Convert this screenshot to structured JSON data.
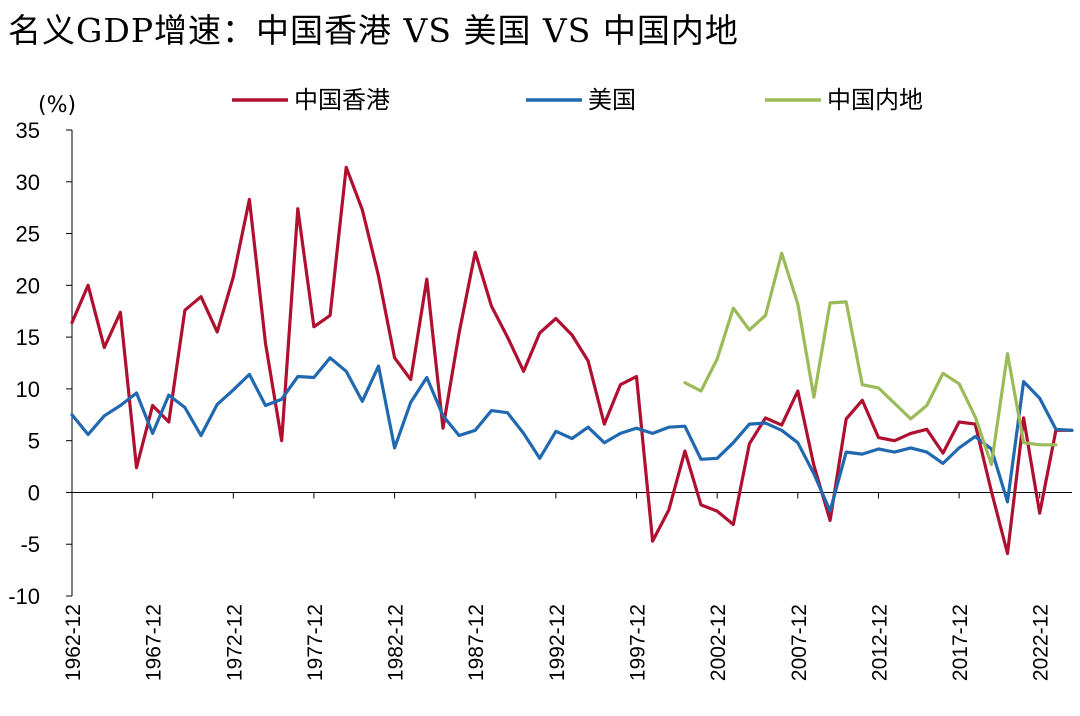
{
  "title": "名义GDP增速：中国香港 VS 美国 VS 中国内地",
  "chart_data": {
    "type": "line",
    "title": "名义GDP增速：中国香港 VS 美国 VS 中国内地",
    "unit_label": "(%)",
    "ylim": [
      -10,
      35
    ],
    "yticks": [
      35,
      30,
      25,
      20,
      15,
      10,
      5,
      0,
      -5,
      -10
    ],
    "xlim": [
      1962,
      2024
    ],
    "xticks": [
      "1962-12",
      "1967-12",
      "1972-12",
      "1977-12",
      "1982-12",
      "1987-12",
      "1992-12",
      "1997-12",
      "2002-12",
      "2007-12",
      "2012-12",
      "2017-12",
      "2022-12"
    ],
    "legend_position": "top",
    "x": [
      1962,
      1963,
      1964,
      1965,
      1966,
      1967,
      1968,
      1969,
      1970,
      1971,
      1972,
      1973,
      1974,
      1975,
      1976,
      1977,
      1978,
      1979,
      1980,
      1981,
      1982,
      1983,
      1984,
      1985,
      1986,
      1987,
      1988,
      1989,
      1990,
      1991,
      1992,
      1993,
      1994,
      1995,
      1996,
      1997,
      1998,
      1999,
      2000,
      2001,
      2002,
      2003,
      2004,
      2005,
      2006,
      2007,
      2008,
      2009,
      2010,
      2011,
      2012,
      2013,
      2014,
      2015,
      2016,
      2017,
      2018,
      2019,
      2020,
      2021,
      2022,
      2023,
      2024
    ],
    "series": [
      {
        "name": "中国香港",
        "color": "#b01030",
        "values": [
          16.4,
          20.0,
          14.0,
          17.4,
          2.4,
          8.4,
          6.8,
          17.6,
          18.9,
          15.5,
          20.8,
          28.3,
          14.4,
          5.0,
          27.4,
          16.0,
          17.1,
          31.4,
          27.3,
          20.9,
          13.0,
          10.9,
          20.6,
          6.2,
          15.4,
          23.2,
          18.0,
          15.0,
          11.7,
          15.4,
          16.8,
          15.2,
          12.7,
          6.6,
          10.4,
          11.2,
          -4.7,
          -1.7,
          4.0,
          -1.2,
          -1.8,
          -3.1,
          4.7,
          7.2,
          6.5,
          9.8,
          2.6,
          -2.7,
          7.1,
          8.9,
          5.3,
          5.0,
          5.7,
          6.1,
          3.8,
          6.8,
          6.6,
          0.1,
          -5.9,
          7.2,
          -2.0,
          6.0,
          6.0
        ]
      },
      {
        "name": "美国",
        "color": "#2068b0",
        "values": [
          7.5,
          5.6,
          7.4,
          8.4,
          9.6,
          5.7,
          9.4,
          8.2,
          5.5,
          8.5,
          9.9,
          11.4,
          8.4,
          9.0,
          11.2,
          11.1,
          13.0,
          11.7,
          8.8,
          12.2,
          4.3,
          8.7,
          11.1,
          7.4,
          5.5,
          6.0,
          7.9,
          7.7,
          5.7,
          3.3,
          5.9,
          5.2,
          6.3,
          4.8,
          5.7,
          6.2,
          5.7,
          6.3,
          6.4,
          3.2,
          3.3,
          4.8,
          6.6,
          6.7,
          6.0,
          4.8,
          1.8,
          -1.8,
          3.9,
          3.7,
          4.2,
          3.9,
          4.3,
          3.9,
          2.8,
          4.3,
          5.4,
          4.2,
          -0.9,
          10.7,
          9.1,
          6.1,
          6.0
        ]
      },
      {
        "name": "中国内地",
        "color": "#9bbb59",
        "values": [
          null,
          null,
          null,
          null,
          null,
          null,
          null,
          null,
          null,
          null,
          null,
          null,
          null,
          null,
          null,
          null,
          null,
          null,
          null,
          null,
          null,
          null,
          null,
          null,
          null,
          null,
          null,
          null,
          null,
          null,
          null,
          null,
          null,
          null,
          null,
          null,
          null,
          null,
          10.6,
          9.8,
          12.9,
          17.8,
          15.7,
          17.1,
          23.1,
          18.2,
          9.2,
          18.3,
          18.4,
          10.4,
          10.1,
          8.6,
          7.1,
          8.4,
          11.5,
          10.5,
          7.3,
          2.7,
          13.4,
          4.8,
          4.6,
          4.6,
          null
        ]
      }
    ]
  }
}
